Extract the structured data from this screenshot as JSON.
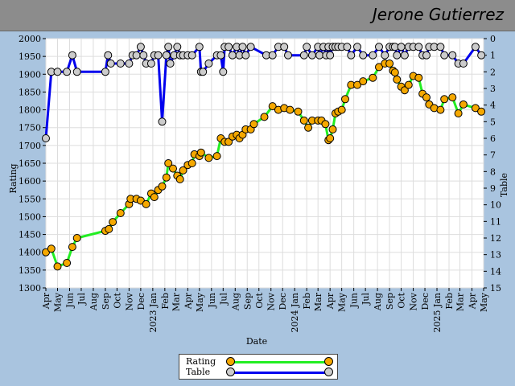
{
  "header": {
    "player_name": "Jerone Gutierrez"
  },
  "chart_data": {
    "type": "line",
    "xlabel": "Date",
    "ylabel_left": "Rating",
    "ylabel_right": "Table",
    "ylim_left": [
      1300,
      2000
    ],
    "ylim_right": [
      0,
      15
    ],
    "right_axis_inverted": true,
    "grid": true,
    "legend_placement": "bottom-center",
    "x_ticks": [
      {
        "date": "2022-04-01",
        "label": "Apr"
      },
      {
        "date": "2022-05-01",
        "label": "May"
      },
      {
        "date": "2022-06-01",
        "label": "Jun"
      },
      {
        "date": "2022-07-01",
        "label": "Jul"
      },
      {
        "date": "2022-08-01",
        "label": "Aug"
      },
      {
        "date": "2022-09-01",
        "label": "Sep"
      },
      {
        "date": "2022-10-01",
        "label": "Oct"
      },
      {
        "date": "2022-11-01",
        "label": "Nov"
      },
      {
        "date": "2022-12-01",
        "label": "Dec"
      },
      {
        "date": "2023-01-01",
        "label": "2023 Jan"
      },
      {
        "date": "2023-02-01",
        "label": "Feb"
      },
      {
        "date": "2023-03-01",
        "label": "Mar"
      },
      {
        "date": "2023-04-01",
        "label": "Apr"
      },
      {
        "date": "2023-05-01",
        "label": "May"
      },
      {
        "date": "2023-06-01",
        "label": "Jun"
      },
      {
        "date": "2023-07-01",
        "label": "Jul"
      },
      {
        "date": "2023-08-01",
        "label": "Aug"
      },
      {
        "date": "2023-09-01",
        "label": "Sep"
      },
      {
        "date": "2023-10-01",
        "label": "Oct"
      },
      {
        "date": "2023-11-01",
        "label": "Nov"
      },
      {
        "date": "2023-12-01",
        "label": "Dec"
      },
      {
        "date": "2024-01-01",
        "label": "2024 Jan"
      },
      {
        "date": "2024-02-01",
        "label": "Feb"
      },
      {
        "date": "2024-03-01",
        "label": "Mar"
      },
      {
        "date": "2024-04-01",
        "label": "Apr"
      },
      {
        "date": "2024-05-01",
        "label": "May"
      },
      {
        "date": "2024-06-01",
        "label": "Jun"
      },
      {
        "date": "2024-07-01",
        "label": "Jul"
      },
      {
        "date": "2024-08-01",
        "label": "Aug"
      },
      {
        "date": "2024-09-01",
        "label": "Sep"
      },
      {
        "date": "2024-10-01",
        "label": "Oct"
      },
      {
        "date": "2024-11-01",
        "label": "Nov"
      },
      {
        "date": "2024-12-01",
        "label": "Dec"
      },
      {
        "date": "2025-01-01",
        "label": "2025 Jan"
      },
      {
        "date": "2025-02-01",
        "label": "Feb"
      },
      {
        "date": "2025-03-01",
        "label": "Mar"
      },
      {
        "date": "2025-04-01",
        "label": "Apr"
      },
      {
        "date": "2025-05-01",
        "label": "May"
      }
    ],
    "series": [
      {
        "name": "Rating",
        "axis": "left",
        "line_color": "#22ee22",
        "marker_color": "#f5a800",
        "points": [
          [
            "2022-04-01",
            1400
          ],
          [
            "2022-04-15",
            1410
          ],
          [
            "2022-05-01",
            1360
          ],
          [
            "2022-05-25",
            1370
          ],
          [
            "2022-06-08",
            1415
          ],
          [
            "2022-06-20",
            1440
          ],
          [
            "2022-09-01",
            1460
          ],
          [
            "2022-09-10",
            1465
          ],
          [
            "2022-09-20",
            1485
          ],
          [
            "2022-10-10",
            1510
          ],
          [
            "2022-11-01",
            1535
          ],
          [
            "2022-11-05",
            1550
          ],
          [
            "2022-11-20",
            1550
          ],
          [
            "2022-12-01",
            1545
          ],
          [
            "2022-12-15",
            1535
          ],
          [
            "2022-12-28",
            1565
          ],
          [
            "2023-01-05",
            1555
          ],
          [
            "2023-01-15",
            1575
          ],
          [
            "2023-01-25",
            1585
          ],
          [
            "2023-02-05",
            1610
          ],
          [
            "2023-02-10",
            1650
          ],
          [
            "2023-02-22",
            1635
          ],
          [
            "2023-03-05",
            1615
          ],
          [
            "2023-03-12",
            1605
          ],
          [
            "2023-03-20",
            1630
          ],
          [
            "2023-04-01",
            1645
          ],
          [
            "2023-04-12",
            1650
          ],
          [
            "2023-04-18",
            1675
          ],
          [
            "2023-05-01",
            1670
          ],
          [
            "2023-05-05",
            1680
          ],
          [
            "2023-05-25",
            1665
          ],
          [
            "2023-06-15",
            1670
          ],
          [
            "2023-06-25",
            1720
          ],
          [
            "2023-07-05",
            1710
          ],
          [
            "2023-07-15",
            1710
          ],
          [
            "2023-07-25",
            1725
          ],
          [
            "2023-08-05",
            1730
          ],
          [
            "2023-08-12",
            1720
          ],
          [
            "2023-08-20",
            1730
          ],
          [
            "2023-08-28",
            1745
          ],
          [
            "2023-09-10",
            1745
          ],
          [
            "2023-09-18",
            1760
          ],
          [
            "2023-10-15",
            1780
          ],
          [
            "2023-11-05",
            1810
          ],
          [
            "2023-11-20",
            1800
          ],
          [
            "2023-12-05",
            1805
          ],
          [
            "2023-12-20",
            1800
          ],
          [
            "2024-01-10",
            1795
          ],
          [
            "2024-01-25",
            1770
          ],
          [
            "2024-02-05",
            1750
          ],
          [
            "2024-02-15",
            1770
          ],
          [
            "2024-03-01",
            1770
          ],
          [
            "2024-03-10",
            1770
          ],
          [
            "2024-03-20",
            1760
          ],
          [
            "2024-03-28",
            1715
          ],
          [
            "2024-04-01",
            1720
          ],
          [
            "2024-04-08",
            1745
          ],
          [
            "2024-04-15",
            1790
          ],
          [
            "2024-04-22",
            1795
          ],
          [
            "2024-05-01",
            1800
          ],
          [
            "2024-05-10",
            1830
          ],
          [
            "2024-05-25",
            1870
          ],
          [
            "2024-06-10",
            1870
          ],
          [
            "2024-06-25",
            1880
          ],
          [
            "2024-07-20",
            1890
          ],
          [
            "2024-08-05",
            1920
          ],
          [
            "2024-08-20",
            1930
          ],
          [
            "2024-09-01",
            1930
          ],
          [
            "2024-09-10",
            1910
          ],
          [
            "2024-09-15",
            1905
          ],
          [
            "2024-09-20",
            1885
          ],
          [
            "2024-10-01",
            1865
          ],
          [
            "2024-10-10",
            1855
          ],
          [
            "2024-10-20",
            1870
          ],
          [
            "2024-11-01",
            1895
          ],
          [
            "2024-11-15",
            1890
          ],
          [
            "2024-11-25",
            1845
          ],
          [
            "2024-12-05",
            1835
          ],
          [
            "2024-12-12",
            1815
          ],
          [
            "2024-12-25",
            1805
          ],
          [
            "2025-01-10",
            1800
          ],
          [
            "2025-01-20",
            1830
          ],
          [
            "2025-02-10",
            1835
          ],
          [
            "2025-02-25",
            1790
          ],
          [
            "2025-03-10",
            1815
          ],
          [
            "2025-04-10",
            1805
          ],
          [
            "2025-04-25",
            1795
          ]
        ]
      },
      {
        "name": "Table",
        "axis": "right",
        "line_color": "#0000ee",
        "marker_color": "#cccccc",
        "points": [
          [
            "2022-04-01",
            6
          ],
          [
            "2022-04-15",
            2
          ],
          [
            "2022-05-01",
            2
          ],
          [
            "2022-05-25",
            2
          ],
          [
            "2022-06-08",
            1
          ],
          [
            "2022-06-20",
            2
          ],
          [
            "2022-09-01",
            2
          ],
          [
            "2022-09-08",
            1
          ],
          [
            "2022-09-15",
            1.5
          ],
          [
            "2022-10-10",
            1.5
          ],
          [
            "2022-11-01",
            1.5
          ],
          [
            "2022-11-10",
            1
          ],
          [
            "2022-11-20",
            1
          ],
          [
            "2022-12-01",
            0.5
          ],
          [
            "2022-12-08",
            1
          ],
          [
            "2022-12-15",
            1.5
          ],
          [
            "2022-12-28",
            1.5
          ],
          [
            "2023-01-05",
            1
          ],
          [
            "2023-01-15",
            1
          ],
          [
            "2023-01-25",
            5
          ],
          [
            "2023-02-05",
            1
          ],
          [
            "2023-02-10",
            0.5
          ],
          [
            "2023-02-15",
            1.5
          ],
          [
            "2023-02-25",
            1
          ],
          [
            "2023-03-05",
            0.5
          ],
          [
            "2023-03-12",
            1
          ],
          [
            "2023-03-20",
            1
          ],
          [
            "2023-04-01",
            1
          ],
          [
            "2023-04-12",
            1
          ],
          [
            "2023-05-01",
            0.5
          ],
          [
            "2023-05-05",
            2
          ],
          [
            "2023-05-10",
            2
          ],
          [
            "2023-05-25",
            1.5
          ],
          [
            "2023-06-15",
            1
          ],
          [
            "2023-06-25",
            1
          ],
          [
            "2023-07-01",
            2
          ],
          [
            "2023-07-05",
            0.5
          ],
          [
            "2023-07-15",
            0.5
          ],
          [
            "2023-07-25",
            1
          ],
          [
            "2023-08-05",
            0.5
          ],
          [
            "2023-08-12",
            1
          ],
          [
            "2023-08-20",
            0.5
          ],
          [
            "2023-08-28",
            1
          ],
          [
            "2023-09-10",
            0.5
          ],
          [
            "2023-10-20",
            1
          ],
          [
            "2023-11-05",
            1
          ],
          [
            "2023-11-20",
            0.5
          ],
          [
            "2023-12-05",
            0.5
          ],
          [
            "2023-12-15",
            1
          ],
          [
            "2024-01-25",
            1
          ],
          [
            "2024-02-01",
            0.5
          ],
          [
            "2024-02-15",
            1
          ],
          [
            "2024-03-01",
            0.5
          ],
          [
            "2024-03-05",
            1
          ],
          [
            "2024-03-15",
            0.5
          ],
          [
            "2024-03-22",
            1
          ],
          [
            "2024-03-28",
            0.5
          ],
          [
            "2024-04-01",
            1
          ],
          [
            "2024-04-08",
            0.5
          ],
          [
            "2024-04-15",
            0.5
          ],
          [
            "2024-04-22",
            0.5
          ],
          [
            "2024-05-01",
            0.5
          ],
          [
            "2024-05-15",
            0.5
          ],
          [
            "2024-05-25",
            1
          ],
          [
            "2024-06-10",
            0.5
          ],
          [
            "2024-06-25",
            1
          ],
          [
            "2024-07-20",
            1
          ],
          [
            "2024-08-05",
            0.5
          ],
          [
            "2024-08-20",
            1
          ],
          [
            "2024-09-01",
            0.5
          ],
          [
            "2024-09-10",
            0.5
          ],
          [
            "2024-09-15",
            0.5
          ],
          [
            "2024-09-20",
            1
          ],
          [
            "2024-10-01",
            0.5
          ],
          [
            "2024-10-10",
            1
          ],
          [
            "2024-10-20",
            0.5
          ],
          [
            "2024-11-01",
            0.5
          ],
          [
            "2024-11-15",
            0.5
          ],
          [
            "2024-11-25",
            1
          ],
          [
            "2024-12-05",
            1
          ],
          [
            "2024-12-12",
            0.5
          ],
          [
            "2024-12-25",
            0.5
          ],
          [
            "2025-01-10",
            0.5
          ],
          [
            "2025-01-20",
            1
          ],
          [
            "2025-02-10",
            1
          ],
          [
            "2025-02-25",
            1.5
          ],
          [
            "2025-03-10",
            1.5
          ],
          [
            "2025-04-10",
            0.5
          ],
          [
            "2025-04-25",
            1
          ]
        ]
      }
    ]
  }
}
